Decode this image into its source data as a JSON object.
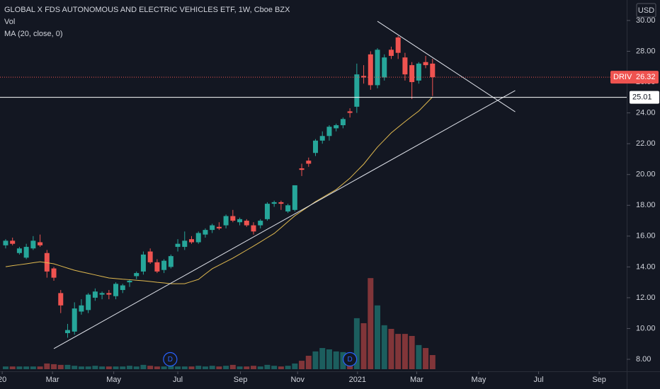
{
  "chart_data": {
    "type": "candlestick",
    "title": "GLOBAL X FDS AUTONOMOUS AND ELECTRIC VEHICLES ETF, 1W, Cboe BZX",
    "volume_label": "Vol",
    "ma_label": "MA (20, close, 0)",
    "currency": "USD",
    "symbol": "DRIV",
    "last_price": 26.32,
    "level": 25.01,
    "up_color": "#26a69a",
    "down_color": "#ef5350",
    "ma_color": "#e0b94f",
    "open": [
      15.4,
      15.7,
      14.9,
      14.6,
      15.2,
      15.6,
      14.9,
      13.9,
      12.3,
      9.7,
      9.8,
      11.1,
      11.2,
      12.0,
      12.2,
      12.3,
      12.1,
      12.5,
      13.0,
      13.4,
      13.7,
      15.0,
      14.3,
      13.8,
      14.0,
      15.3,
      15.3,
      15.8,
      15.6,
      16.1,
      16.4,
      16.6,
      16.7,
      17.3,
      16.9,
      17.0,
      16.7,
      16.7,
      17.1,
      18.1,
      18.2,
      17.6,
      17.7,
      20.4,
      20.9,
      21.4,
      22.2,
      22.5,
      23.0,
      23.2,
      24.1,
      24.4,
      26.4,
      27.8,
      25.8,
      26.3,
      28.1,
      28.9,
      27.6,
      27.1,
      26.1,
      27.3,
      27.2
    ],
    "high": [
      15.8,
      15.9,
      15.3,
      15.5,
      16.0,
      16.1,
      15.1,
      14.0,
      12.5,
      10.3,
      11.7,
      11.9,
      12.3,
      12.6,
      12.4,
      12.5,
      13.0,
      12.9,
      13.2,
      13.7,
      15.0,
      15.2,
      14.5,
      14.5,
      14.8,
      15.8,
      16.3,
      16.0,
      16.3,
      16.5,
      16.8,
      16.9,
      17.4,
      17.7,
      17.2,
      17.1,
      16.9,
      17.1,
      18.2,
      18.3,
      18.3,
      18.1,
      19.3,
      20.7,
      21.1,
      22.3,
      22.8,
      23.2,
      23.3,
      23.7,
      24.3,
      27.2,
      27.1,
      28.0,
      28.2,
      27.8,
      28.3,
      29.0,
      27.9,
      27.3,
      27.3,
      27.7,
      27.5
    ],
    "low": [
      15.2,
      15.4,
      14.8,
      14.5,
      15.1,
      15.3,
      13.3,
      13.1,
      11.0,
      9.4,
      9.6,
      10.9,
      11.0,
      11.8,
      11.9,
      11.9,
      11.9,
      12.3,
      12.7,
      13.2,
      13.5,
      14.2,
      13.6,
      13.6,
      13.9,
      15.0,
      15.1,
      15.5,
      15.5,
      15.9,
      16.2,
      16.4,
      16.5,
      16.9,
      16.7,
      16.6,
      16.1,
      16.5,
      17.0,
      17.9,
      17.7,
      17.5,
      17.6,
      19.9,
      20.5,
      21.2,
      22.0,
      22.2,
      22.8,
      23.0,
      23.7,
      24.0,
      25.9,
      25.5,
      25.6,
      26.1,
      27.5,
      27.5,
      26.1,
      24.9,
      25.9,
      26.9,
      25.1
    ],
    "close": [
      15.7,
      15.5,
      15.2,
      15.3,
      15.7,
      15.4,
      13.7,
      13.3,
      11.5,
      9.9,
      11.3,
      11.5,
      12.2,
      12.4,
      12.3,
      12.2,
      12.9,
      12.8,
      13.1,
      13.6,
      14.8,
      14.3,
      13.7,
      14.4,
      14.7,
      15.5,
      15.7,
      15.6,
      16.2,
      16.4,
      16.7,
      16.5,
      17.3,
      17.0,
      17.1,
      16.7,
      16.3,
      17.0,
      18.1,
      18.2,
      18.1,
      18.0,
      19.3,
      20.3,
      20.7,
      22.2,
      22.5,
      23.1,
      23.2,
      23.6,
      24.0,
      26.5,
      26.3,
      25.8,
      28.1,
      27.6,
      27.7,
      27.9,
      26.5,
      26.0,
      27.2,
      27.1,
      26.32
    ],
    "volume": [
      0.12,
      0.12,
      0.12,
      0.12,
      0.12,
      0.12,
      0.25,
      0.22,
      0.19,
      0.19,
      0.15,
      0.12,
      0.12,
      0.15,
      0.12,
      0.12,
      0.12,
      0.12,
      0.15,
      0.12,
      0.19,
      0.15,
      0.12,
      0.12,
      0.15,
      0.12,
      0.12,
      0.12,
      0.15,
      0.12,
      0.15,
      0.12,
      0.15,
      0.19,
      0.12,
      0.12,
      0.15,
      0.12,
      0.19,
      0.15,
      0.12,
      0.15,
      0.25,
      0.37,
      0.59,
      0.78,
      0.93,
      0.87,
      0.78,
      0.75,
      0.68,
      2.24,
      2.02,
      4.0,
      2.8,
      1.93,
      1.77,
      1.55,
      1.55,
      1.46,
      1.06,
      0.93,
      0.62
    ],
    "volume_lim": [
      0,
      5
    ],
    "ma": [
      14.01,
      14.08,
      14.14,
      14.2,
      14.27,
      14.33,
      14.27,
      14.2,
      14.06,
      13.92,
      13.78,
      13.68,
      13.58,
      13.48,
      13.38,
      13.28,
      13.24,
      13.2,
      13.17,
      13.13,
      13.1,
      13.05,
      13.0,
      12.96,
      12.91,
      12.91,
      12.91,
      13.05,
      13.19,
      13.54,
      13.88,
      14.11,
      14.34,
      14.57,
      14.83,
      15.09,
      15.35,
      15.62,
      15.9,
      16.17,
      16.55,
      16.94,
      17.32,
      17.63,
      17.93,
      18.24,
      18.5,
      18.76,
      19.02,
      19.39,
      19.76,
      20.22,
      20.67,
      21.23,
      21.78,
      22.24,
      22.7,
      23.07,
      23.43,
      23.78,
      24.12,
      24.58,
      25.04
    ],
    "events": [
      {
        "x": 23.9,
        "label": "D"
      },
      {
        "x": 50.0,
        "label": "D"
      }
    ],
    "trendlines": [
      {
        "x": [
          7.0,
          74.0
        ],
        "y": [
          8.69,
          25.45
        ]
      },
      {
        "x": [
          54.0,
          74.0
        ],
        "y": [
          29.95,
          24.07
        ]
      }
    ],
    "xlim": [
      -0.82,
      90.2
    ],
    "xticks": [
      {
        "value": -0.5,
        "label": "20"
      },
      {
        "value": 6.8,
        "label": "Mar"
      },
      {
        "value": 15.7,
        "label": "May"
      },
      {
        "value": 25.0,
        "label": "Jul"
      },
      {
        "value": 34.1,
        "label": "Sep"
      },
      {
        "value": 42.4,
        "label": "Nov"
      },
      {
        "value": 51.1,
        "label": "2021"
      },
      {
        "value": 59.7,
        "label": "Mar"
      },
      {
        "value": 68.7,
        "label": "May"
      },
      {
        "value": 77.4,
        "label": "Jul"
      },
      {
        "value": 86.2,
        "label": "Sep"
      }
    ],
    "ylim": [
      7.22,
      31.33
    ],
    "yticks": [
      {
        "value": 8,
        "label": "8.00"
      },
      {
        "value": 10,
        "label": "10.00"
      },
      {
        "value": 12,
        "label": "12.00"
      },
      {
        "value": 14,
        "label": "14.00"
      },
      {
        "value": 16,
        "label": "16.00"
      },
      {
        "value": 18,
        "label": "18.00"
      },
      {
        "value": 20,
        "label": "20.00"
      },
      {
        "value": 22,
        "label": "22.00"
      },
      {
        "value": 24,
        "label": "24.00"
      },
      {
        "value": 26,
        "label": "26.00"
      },
      {
        "value": 28,
        "label": "28.00"
      },
      {
        "value": 30,
        "label": "30.00"
      }
    ],
    "grid": false
  }
}
